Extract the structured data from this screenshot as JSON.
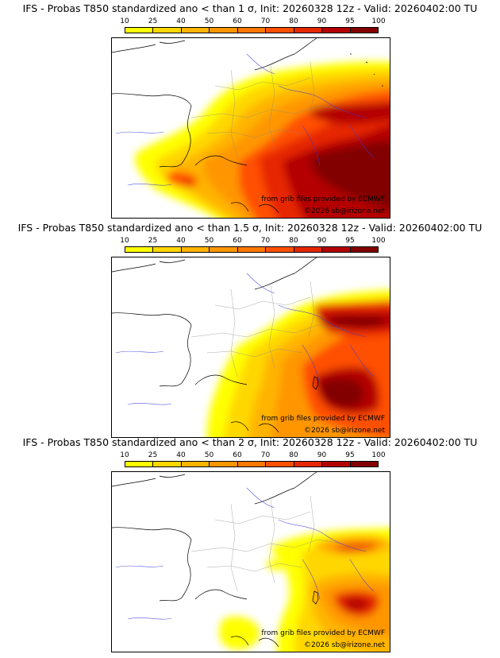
{
  "colorbar": {
    "ticks": [
      "10",
      "25",
      "40",
      "50",
      "60",
      "70",
      "80",
      "90",
      "95",
      "100"
    ],
    "colors": [
      "#ffff00",
      "#ffd700",
      "#ffb400",
      "#ff9600",
      "#ff7800",
      "#ff5000",
      "#e62800",
      "#b40000",
      "#820000"
    ]
  },
  "panels": [
    {
      "title": "IFS - Probas T850  standardized ano < than 1 σ, Init: 20260328 12z - Valid: 20260402:00 TU",
      "credit_line1": "from grib files provided by ECMWF",
      "credit_line2": "©2026 sb@irizone.net"
    },
    {
      "title": "IFS - Probas T850  standardized ano < than 1.5 σ, Init: 20260328 12z - Valid: 20260402:00 TU",
      "credit_line1": "from grib files provided by ECMWF",
      "credit_line2": "©2026 sb@irizone.net"
    },
    {
      "title": "IFS - Probas T850  standardized ano < than 2 σ, Init: 20260328 12z - Valid: 20260402:00 TU",
      "credit_line1": "from grib files provided by ECMWF",
      "credit_line2": "©2026 sb@irizone.net"
    }
  ]
}
